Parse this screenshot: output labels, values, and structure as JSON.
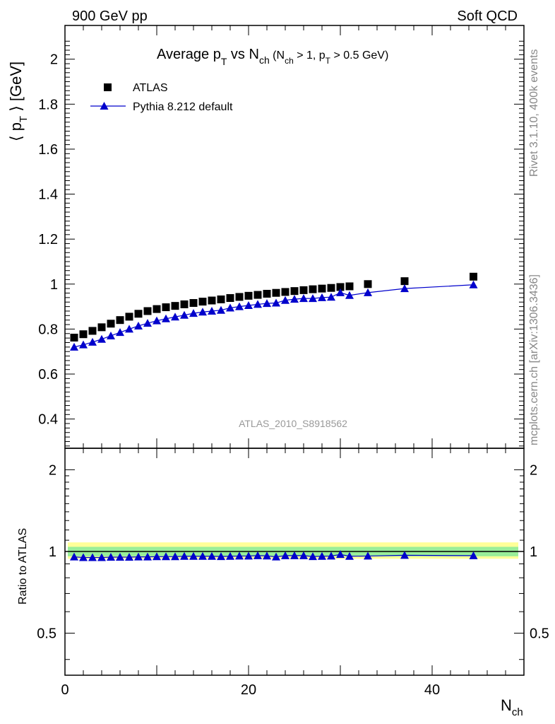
{
  "header": {
    "left": "900 GeV pp",
    "right": "Soft QCD"
  },
  "side_text": {
    "rivet": "Rivet 3.1.10,  400k events",
    "mcplots": "mcplots.cern.ch [arXiv:1306.3436]"
  },
  "colors": {
    "data": "#000000",
    "mc": "#0000cc",
    "band_outer": "#ffff99",
    "band_inner": "#99ee99"
  },
  "chart_data": {
    "type": "scatter",
    "title_parts": {
      "main": "Average p",
      "sub1": "T",
      "mid": " vs N",
      "sub2": "ch",
      "paren_open": " (N",
      "sub3": "ch",
      "paren_mid": " > 1, p",
      "sub4": "T",
      "paren_close": " > 0.5 GeV)"
    },
    "analysis_tag": "ATLAS_2010_S8918562",
    "ylabel": {
      "open": "⟨ p",
      "sub": "T",
      "close": " ⟩  [GeV]"
    },
    "xlabel": {
      "main": "N",
      "sub": "ch"
    },
    "ratio_ylabel": "Ratio to ATLAS",
    "xlim": [
      0,
      50
    ],
    "ylim": [
      0.27,
      2.15
    ],
    "ratio_ylim": [
      0.35,
      2.4
    ],
    "x_ticks": [
      "0",
      "20",
      "40"
    ],
    "y_ticks": [
      "0.4",
      "0.6",
      "0.8",
      "1",
      "1.2",
      "1.4",
      "1.6",
      "1.8",
      "2"
    ],
    "ratio_ticks": [
      "0.5",
      "1",
      "2"
    ],
    "legend": [
      {
        "name": "ATLAS",
        "marker": "square"
      },
      {
        "name": "Pythia 8.212 default",
        "marker": "triangle"
      }
    ],
    "series": [
      {
        "name": "ATLAS",
        "x": [
          1,
          2,
          3,
          4,
          5,
          6,
          7,
          8,
          9,
          10,
          11,
          12,
          13,
          14,
          15,
          16,
          17,
          18,
          19,
          20,
          21,
          22,
          23,
          24,
          25,
          26,
          27,
          28,
          29,
          30,
          31,
          33,
          37,
          44.5
        ],
        "values": [
          0.762,
          0.777,
          0.792,
          0.808,
          0.824,
          0.84,
          0.855,
          0.868,
          0.88,
          0.889,
          0.897,
          0.903,
          0.91,
          0.916,
          0.922,
          0.927,
          0.932,
          0.938,
          0.943,
          0.948,
          0.952,
          0.957,
          0.961,
          0.965,
          0.969,
          0.973,
          0.977,
          0.98,
          0.983,
          0.987,
          0.99,
          1.0,
          1.013,
          1.033
        ]
      },
      {
        "name": "Pythia 8.212 default",
        "x": [
          1,
          2,
          3,
          4,
          5,
          6,
          7,
          8,
          9,
          10,
          11,
          12,
          13,
          14,
          15,
          16,
          17,
          18,
          19,
          20,
          21,
          22,
          23,
          24,
          25,
          26,
          27,
          28,
          29,
          30,
          31,
          33,
          37,
          44.5
        ],
        "values": [
          0.72,
          0.73,
          0.742,
          0.755,
          0.77,
          0.785,
          0.8,
          0.814,
          0.826,
          0.837,
          0.846,
          0.854,
          0.862,
          0.87,
          0.876,
          0.88,
          0.884,
          0.894,
          0.9,
          0.905,
          0.91,
          0.914,
          0.916,
          0.928,
          0.933,
          0.936,
          0.936,
          0.94,
          0.942,
          0.962,
          0.95,
          0.962,
          0.98,
          0.997
        ]
      }
    ],
    "ratio": {
      "name": "Pythia 8.212 default / ATLAS",
      "x": [
        1,
        2,
        3,
        4,
        5,
        6,
        7,
        8,
        9,
        10,
        11,
        12,
        13,
        14,
        15,
        16,
        17,
        18,
        19,
        20,
        21,
        22,
        23,
        24,
        25,
        26,
        27,
        28,
        29,
        30,
        31,
        33,
        37,
        44.5
      ],
      "values": [
        0.955,
        0.95,
        0.95,
        0.95,
        0.953,
        0.953,
        0.953,
        0.955,
        0.955,
        0.957,
        0.957,
        0.957,
        0.96,
        0.96,
        0.96,
        0.96,
        0.958,
        0.96,
        0.962,
        0.962,
        0.965,
        0.963,
        0.955,
        0.965,
        0.965,
        0.965,
        0.958,
        0.96,
        0.962,
        0.975,
        0.96,
        0.962,
        0.968,
        0.965
      ],
      "band_outer": [
        0.94,
        1.08
      ],
      "band_inner": [
        0.96,
        1.04
      ]
    }
  }
}
